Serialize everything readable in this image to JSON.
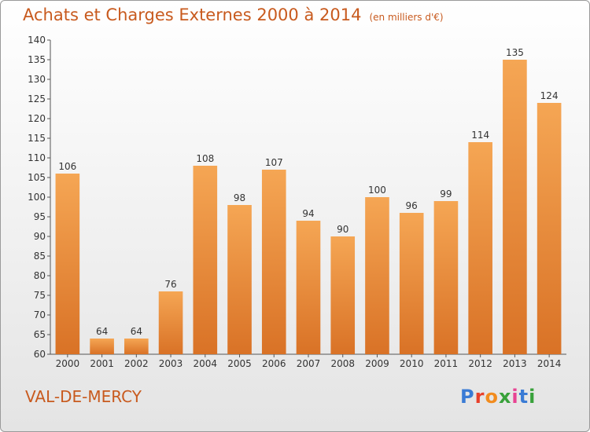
{
  "header": {
    "title": "Achats et Charges Externes 2000 à 2014",
    "unit": "(en milliers d'€)"
  },
  "place_name": "VAL-DE-MERCY",
  "logo": {
    "text": "Proxiti",
    "letter_colors": [
      "#3a7bd5",
      "#e8402a",
      "#f28c1e",
      "#38a13a",
      "#e84393",
      "#3a7bd5",
      "#38a13a"
    ]
  },
  "colors": {
    "bar_top": "#f5a654",
    "bar_bottom": "#d97226",
    "accent": "#c85a1e"
  },
  "chart_data": {
    "type": "bar",
    "title": "Achats et Charges Externes 2000 à 2014",
    "subtitle": "(en milliers d'€)",
    "categories": [
      "2000",
      "2001",
      "2002",
      "2003",
      "2004",
      "2005",
      "2006",
      "2007",
      "2008",
      "2009",
      "2010",
      "2011",
      "2012",
      "2013",
      "2014"
    ],
    "values": [
      106,
      64,
      64,
      76,
      108,
      98,
      107,
      94,
      90,
      100,
      96,
      99,
      114,
      135,
      124
    ],
    "ylim": [
      60,
      140
    ],
    "yticks": [
      60,
      65,
      70,
      75,
      80,
      85,
      90,
      95,
      100,
      105,
      110,
      115,
      120,
      125,
      130,
      135,
      140
    ],
    "grid": false,
    "legend": "none"
  }
}
